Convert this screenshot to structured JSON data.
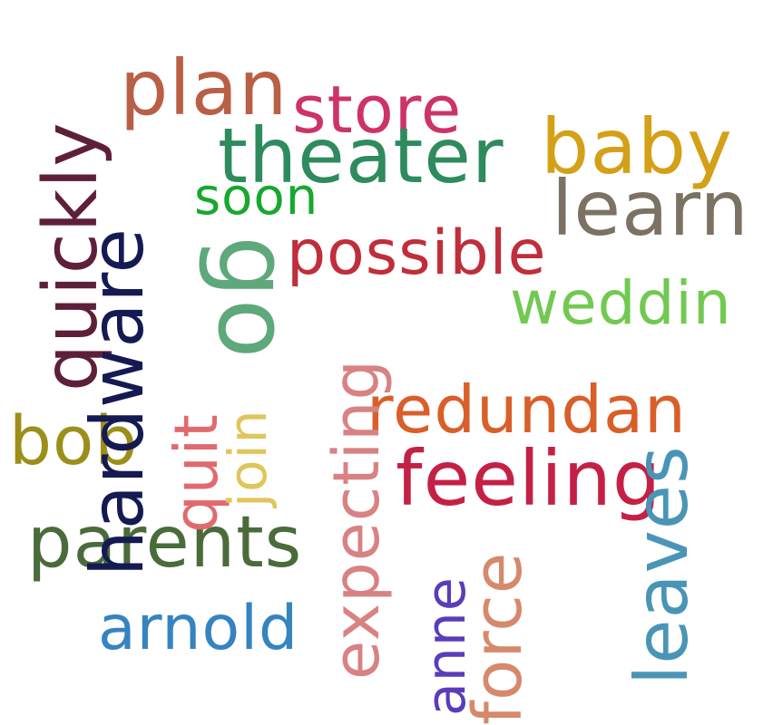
{
  "words": [
    {
      "key": "plan",
      "text": "plan",
      "color": "#b85f46"
    },
    {
      "key": "store",
      "text": "store",
      "color": "#cc3366"
    },
    {
      "key": "theater",
      "text": "theater",
      "color": "#2e8b5e"
    },
    {
      "key": "baby",
      "text": "baby",
      "color": "#d4a017"
    },
    {
      "key": "soon",
      "text": "soon",
      "color": "#17a82e"
    },
    {
      "key": "learn",
      "text": "learn",
      "color": "#7b7264"
    },
    {
      "key": "possible",
      "text": "possible",
      "color": "#bf2e3a"
    },
    {
      "key": "weddin",
      "text": "weddin",
      "color": "#72c951"
    },
    {
      "key": "redundan",
      "text": "redundan",
      "color": "#d95f2a"
    },
    {
      "key": "feeling",
      "text": "feeling",
      "color": "#c42045"
    },
    {
      "key": "bob",
      "text": "bob",
      "color": "#9b8f1a"
    },
    {
      "key": "parents",
      "text": "parents",
      "color": "#4a6b3a"
    },
    {
      "key": "arnold",
      "text": "arnold",
      "color": "#3584c0"
    },
    {
      "key": "quickly",
      "text": "quickly",
      "color": "#5e1f3b"
    },
    {
      "key": "hardware",
      "text": "hardware",
      "color": "#141a52"
    },
    {
      "key": "quit",
      "text": "quit",
      "color": "#e06a6e"
    },
    {
      "key": "go",
      "text": "go",
      "color": "#5fa87b"
    },
    {
      "key": "join",
      "text": "join",
      "color": "#dfc55a"
    },
    {
      "key": "expecting",
      "text": "expecting",
      "color": "#d88283"
    },
    {
      "key": "anne",
      "text": "anne",
      "color": "#5b3cba"
    },
    {
      "key": "force",
      "text": "force",
      "color": "#d6896b"
    },
    {
      "key": "leaves",
      "text": "leaves",
      "color": "#4a95b6"
    }
  ]
}
